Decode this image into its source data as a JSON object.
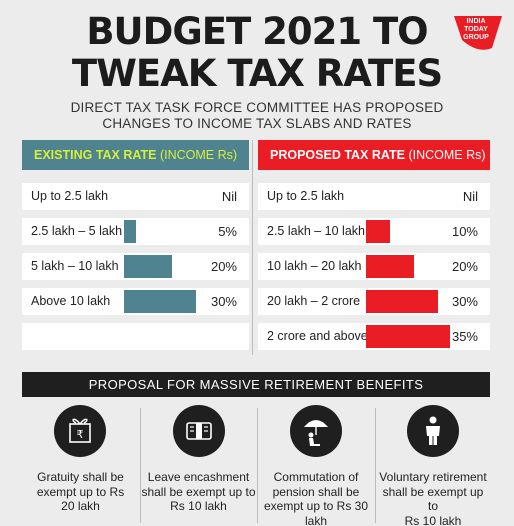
{
  "title": {
    "line1": "BUDGET 2021 TO",
    "line2": "TWEAK TAX RATES"
  },
  "logo": {
    "line1": "INDIA",
    "line2": "TODAY",
    "line3": "GROUP",
    "color": "#ea1c24"
  },
  "subtitle": {
    "line1": "DIRECT TAX TASK FORCE COMMITTEE HAS PROPOSED",
    "line2": "CHANGES TO INCOME TAX SLABS AND RATES"
  },
  "existing": {
    "header_bold": "EXISTING TAX RATE",
    "header_light": " (INCOME Rs)",
    "color": "#4f8390",
    "rows": [
      {
        "label": "Up to 2.5 lakh",
        "rate": "Nil",
        "pct": 0
      },
      {
        "label": "2.5 lakh – 5 lakh",
        "rate": "5%",
        "pct": 5
      },
      {
        "label": "5 lakh – 10  lakh",
        "rate": "20%",
        "pct": 20
      },
      {
        "label": "Above 10 lakh",
        "rate": "30%",
        "pct": 30
      }
    ]
  },
  "proposed": {
    "header_bold": "PROPOSED TAX RATE",
    "header_light": " (INCOME Rs)",
    "color": "#ea1c24",
    "rows": [
      {
        "label": "Up to 2.5 lakh",
        "rate": "Nil",
        "pct": 0
      },
      {
        "label": "2.5 lakh – 10 lakh",
        "rate": "10%",
        "pct": 10
      },
      {
        "label": "10  lakh – 20 lakh",
        "rate": "20%",
        "pct": 20
      },
      {
        "label": "20 lakh – 2 crore",
        "rate": "30%",
        "pct": 30
      },
      {
        "label": "2 crore and above",
        "rate": "35%",
        "pct": 35
      }
    ]
  },
  "retirement": {
    "heading": "PROPOSAL FOR MASSIVE RETIREMENT BENEFITS",
    "items": [
      {
        "icon": "rupee-gift-icon",
        "l1": "Gratuity shall be",
        "l2": "exempt up to Rs",
        "l3": "20 lakh",
        "l4": ""
      },
      {
        "icon": "cash-bundle-icon",
        "l1": "Leave encashment",
        "l2": "shall be exempt up to",
        "l3": "Rs 10 lakh",
        "l4": ""
      },
      {
        "icon": "umbrella-person-icon",
        "l1": "Commutation of",
        "l2": "pension shall be",
        "l3": "exempt up to Rs 30",
        "l4": "lakh"
      },
      {
        "icon": "person-standing-icon",
        "l1": "Voluntary retirement",
        "l2": "shall be exempt up to",
        "l3": "Rs 10 lakh",
        "l4": ""
      }
    ]
  }
}
